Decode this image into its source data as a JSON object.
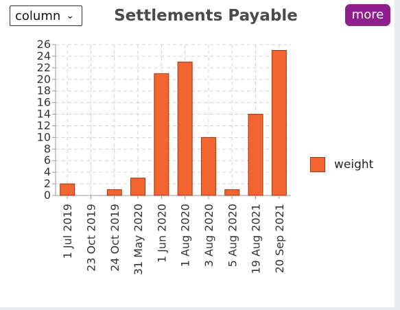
{
  "controls": {
    "chart_type_select": "column",
    "more_label": "more"
  },
  "colors": {
    "bar_fill": "#f26430",
    "bar_stroke": "#9a3a16",
    "more_button": "#8e1f8c"
  },
  "chart_data": {
    "type": "bar",
    "title": "Settlements Payable",
    "categories": [
      "1 Jul 2019",
      "23 Oct 2019",
      "24 Oct 2019",
      "31 May 2020",
      "1 Jun 2020",
      "1 Aug 2020",
      "3 Aug 2020",
      "5 Aug 2020",
      "19 Aug 2021",
      "20 Sep 2021"
    ],
    "series": [
      {
        "name": "weight",
        "values": [
          2,
          0,
          1,
          3,
          21,
          23,
          10,
          1,
          14,
          25
        ]
      }
    ],
    "ylim": [
      0,
      26
    ],
    "yticks": [
      0,
      2,
      4,
      6,
      8,
      10,
      12,
      14,
      16,
      18,
      20,
      22,
      24,
      26
    ],
    "grid": true,
    "legend": "right"
  }
}
